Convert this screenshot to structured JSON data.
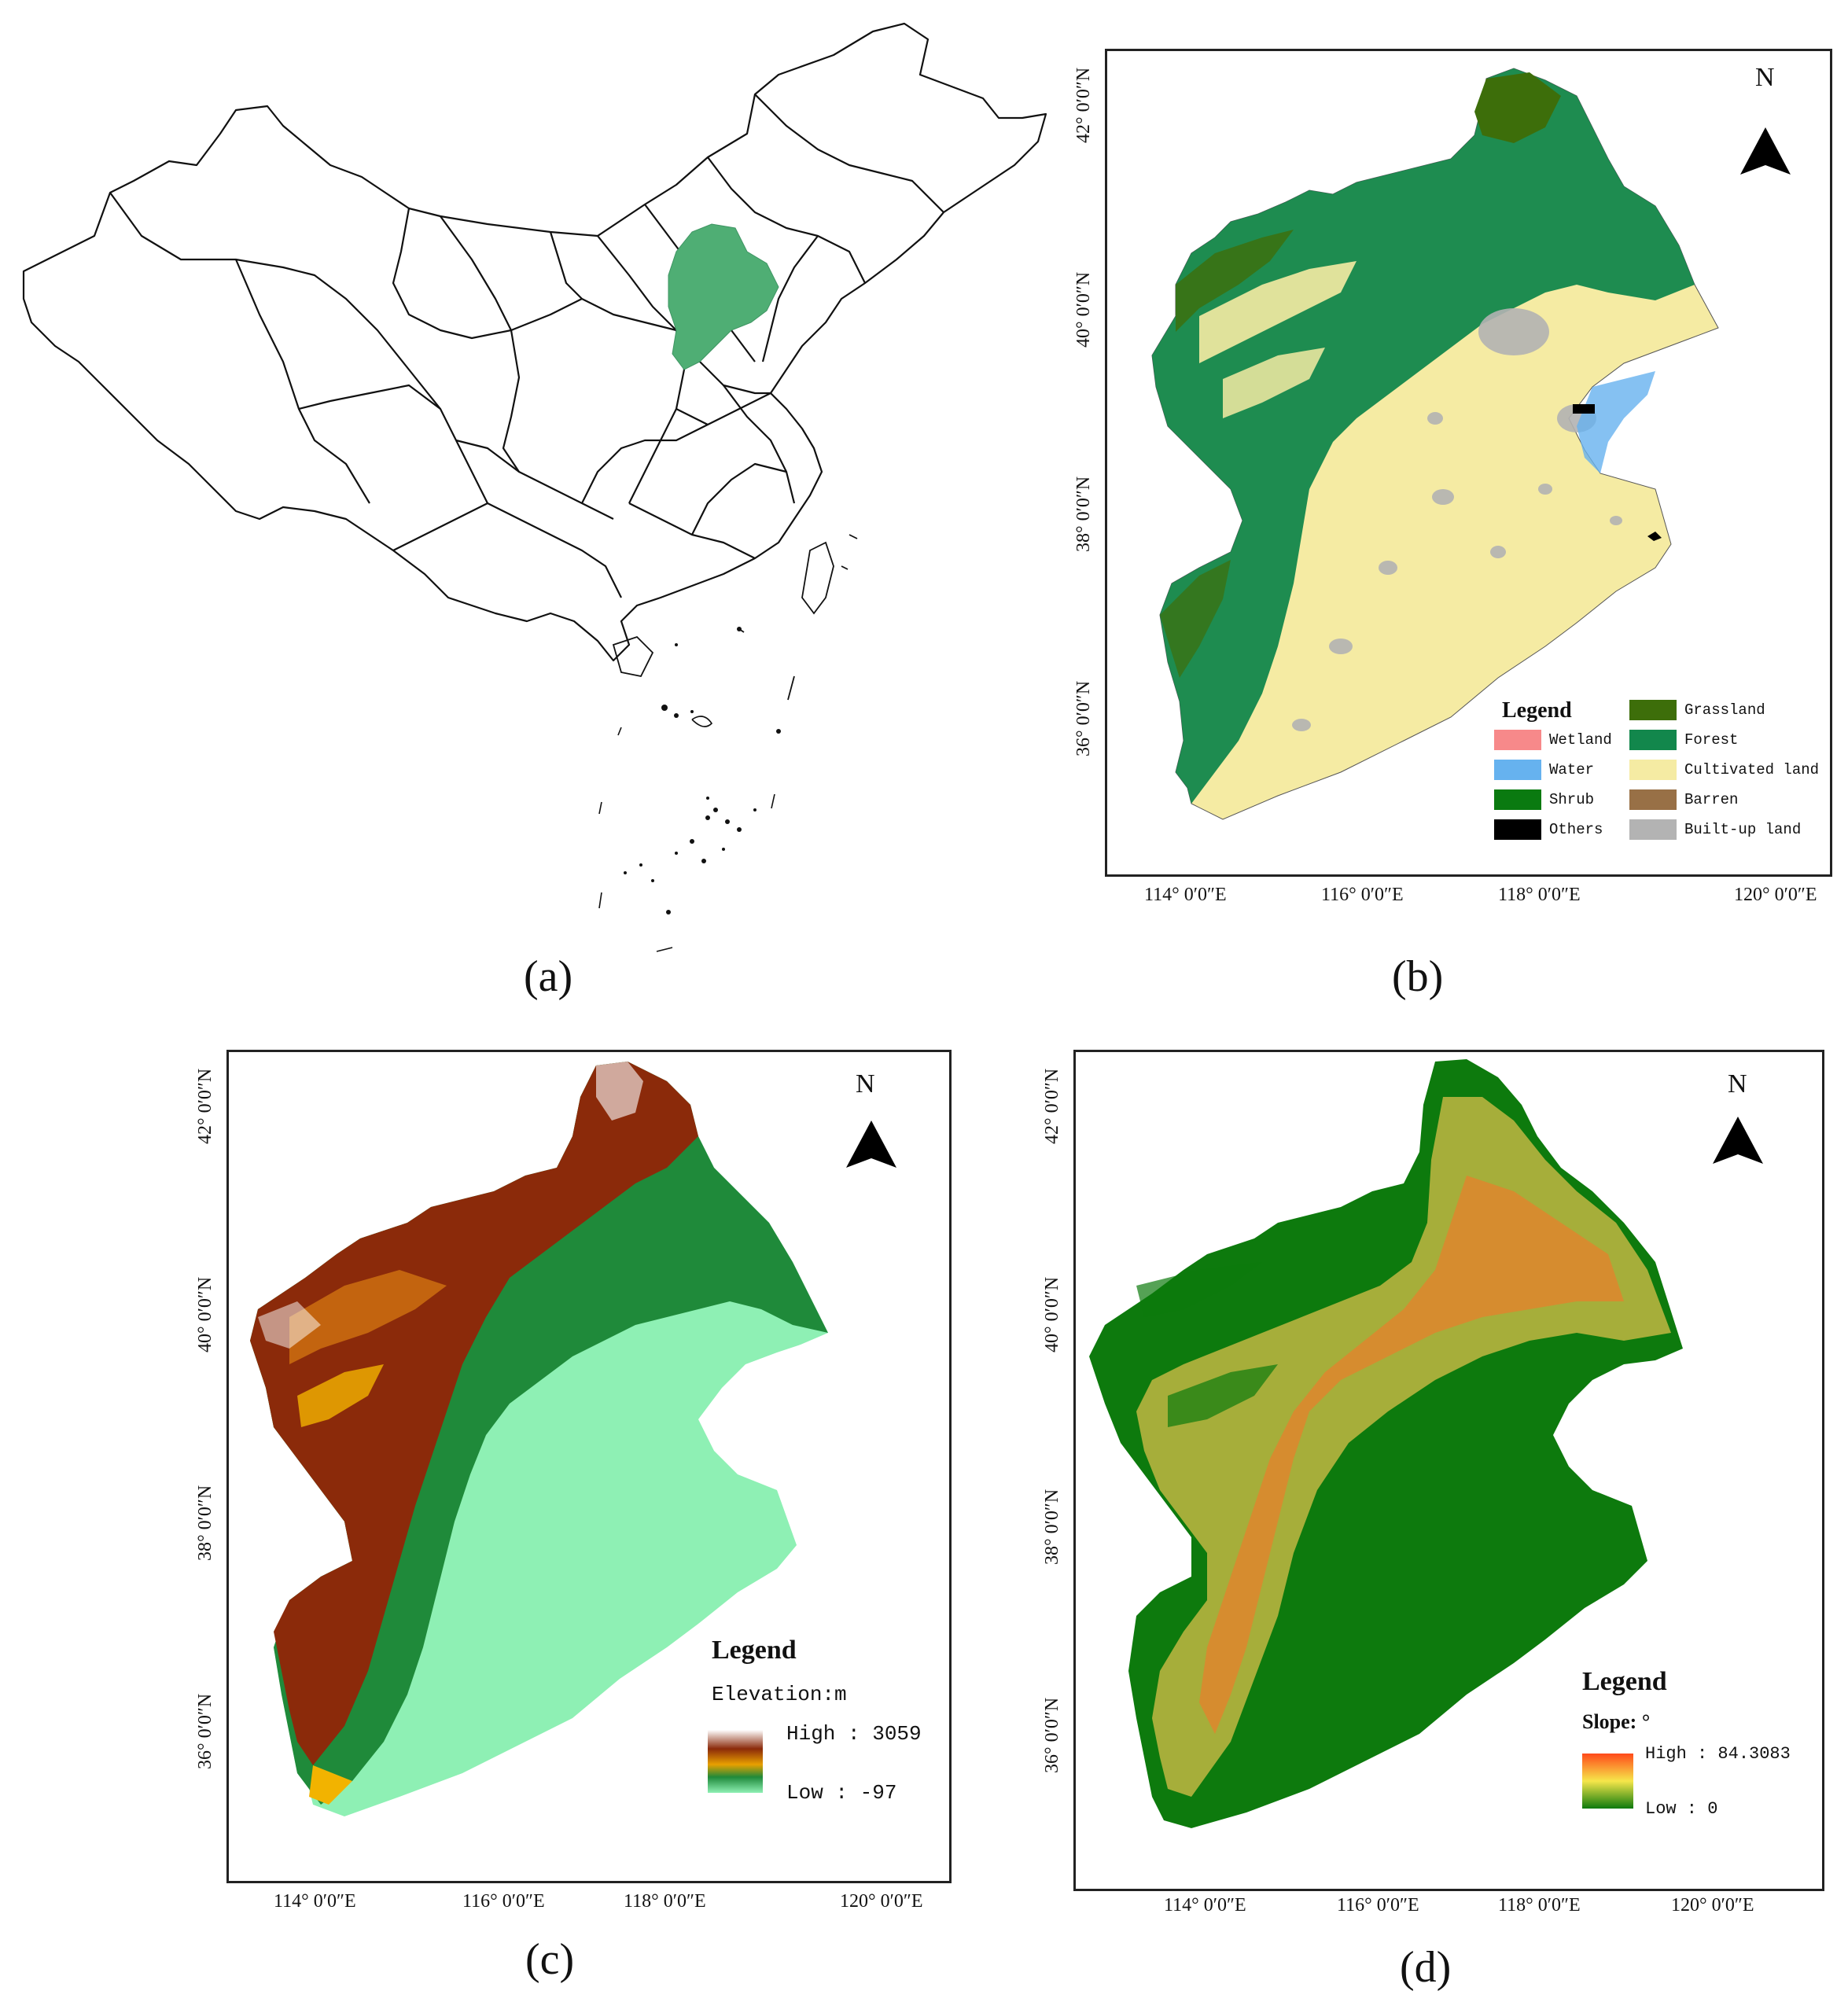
{
  "panels": {
    "a": {
      "caption": "(a)"
    },
    "b": {
      "caption": "(b)",
      "north": "N",
      "x_ticks": [
        "114° 0′0″E",
        "116° 0′0″E",
        "118° 0′0″E",
        "120° 0′0″E"
      ],
      "y_ticks": [
        "42° 0′0″N",
        "40° 0′0″N",
        "38° 0′0″N",
        "36° 0′0″N"
      ],
      "legend": {
        "title": "Legend",
        "items": [
          {
            "label": "Wetland",
            "color": "#f7898a"
          },
          {
            "label": "Water",
            "color": "#66b2ef"
          },
          {
            "label": "Shrub",
            "color": "#0a7a10"
          },
          {
            "label": "Others",
            "color": "#000000"
          },
          {
            "label": "Grassland",
            "color": "#3d6e0a"
          },
          {
            "label": "Forest",
            "color": "#12874c"
          },
          {
            "label": "Cultivated land",
            "color": "#f5eba3"
          },
          {
            "label": "Barren",
            "color": "#987046"
          },
          {
            "label": "Built-up land",
            "color": "#b3b3b3"
          }
        ]
      }
    },
    "c": {
      "caption": "(c)",
      "north": "N",
      "x_ticks": [
        "114° 0′0″E",
        "116° 0′0″E",
        "118° 0′0″E",
        "120° 0′0″E"
      ],
      "y_ticks": [
        "42° 0′0″N",
        "40° 0′0″N",
        "38° 0′0″N",
        "36° 0′0″N"
      ],
      "legend": {
        "title": "Legend",
        "subtitle": "Elevation:m",
        "high": "High : 3059",
        "low": "Low : -97",
        "ramp": [
          "#ffffff",
          "#8b2a0a",
          "#e8a000",
          "#1f8a3a",
          "#8ef0b4"
        ]
      }
    },
    "d": {
      "caption": "(d)",
      "north": "N",
      "x_ticks": [
        "114° 0′0″E",
        "116° 0′0″E",
        "118° 0′0″E",
        "120° 0′0″E"
      ],
      "y_ticks": [
        "42° 0′0″N",
        "40° 0′0″N",
        "38° 0′0″N",
        "36° 0′0″N"
      ],
      "legend": {
        "title": "Legend",
        "subtitle": "Slope: °",
        "high": "High : 84.3083",
        "low": "Low : 0",
        "ramp": [
          "#ff4a1a",
          "#f6e64a",
          "#0d7a0d"
        ]
      }
    }
  },
  "colors": {
    "highlight_region": "#4fae74",
    "outline": "#111111"
  }
}
